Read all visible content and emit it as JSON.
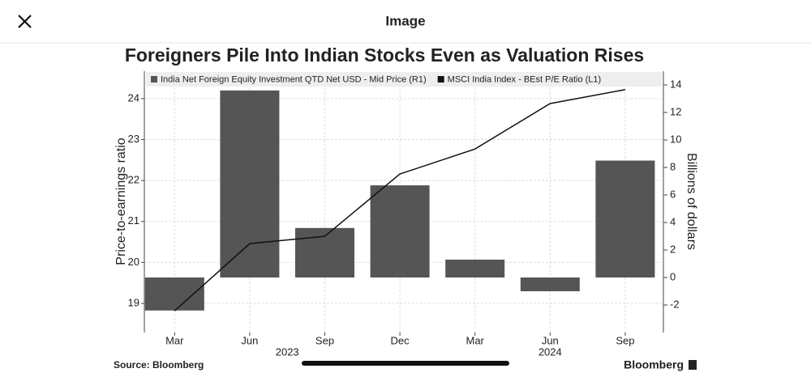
{
  "header": {
    "title": "Image"
  },
  "chart_data": {
    "type": "bar",
    "title": "Foreigners Pile Into Indian Stocks Even as Valuation Rises",
    "categories": [
      "Mar",
      "Jun",
      "Sep",
      "Dec",
      "Mar",
      "Jun",
      "Sep"
    ],
    "groups": [
      {
        "label": "2023",
        "size": 4
      },
      {
        "label": "2024",
        "size": 3
      }
    ],
    "series": [
      {
        "name": "India Net Foreign Equity Investment QTD Net USD - Mid Price (R1)",
        "type": "bar",
        "axis": "y2",
        "color": "#555555",
        "values": [
          -2.4,
          13.6,
          3.6,
          6.7,
          1.3,
          -1.0,
          8.5
        ]
      },
      {
        "name": "MSCI India Index - BEst P/E Ratio (L1)",
        "type": "line",
        "color": "#111111",
        "values": [
          18.82,
          20.46,
          20.64,
          22.16,
          22.77,
          23.88,
          24.22
        ]
      }
    ],
    "y_label": "Price-to-earnings ratio",
    "y2_label": "Billions of dollars",
    "ylim": [
      18.29,
      24.67
    ],
    "yticks": [
      19,
      20,
      21,
      22,
      23,
      24
    ],
    "y2lim": [
      -4,
      15
    ],
    "y2ticks": [
      -2,
      0,
      2,
      4,
      6,
      8,
      10,
      12,
      14
    ],
    "grid": true,
    "source": "Source: Bloomberg",
    "brand": "Bloomberg"
  }
}
